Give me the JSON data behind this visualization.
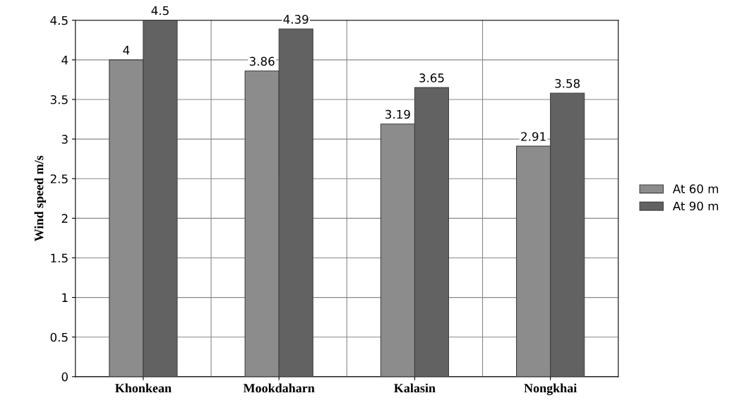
{
  "chart_data": {
    "type": "bar",
    "ylabel": "Wind speed m/s",
    "categories": [
      "Khonkean",
      "Mookdaharn",
      "Kalasin",
      "Nongkhai"
    ],
    "series": [
      {
        "name": "At 60 m",
        "color": "#8c8c8c",
        "values": [
          4,
          3.86,
          3.19,
          2.91
        ]
      },
      {
        "name": "At 90 m",
        "color": "#626262",
        "values": [
          4.5,
          4.39,
          3.65,
          3.58
        ]
      }
    ],
    "ylim": [
      0,
      4.5
    ],
    "yticks": [
      0,
      0.5,
      1,
      1.5,
      2,
      2.5,
      3,
      3.5,
      4,
      4.5
    ],
    "grid": "y",
    "legend": "right",
    "data_labels": true
  }
}
